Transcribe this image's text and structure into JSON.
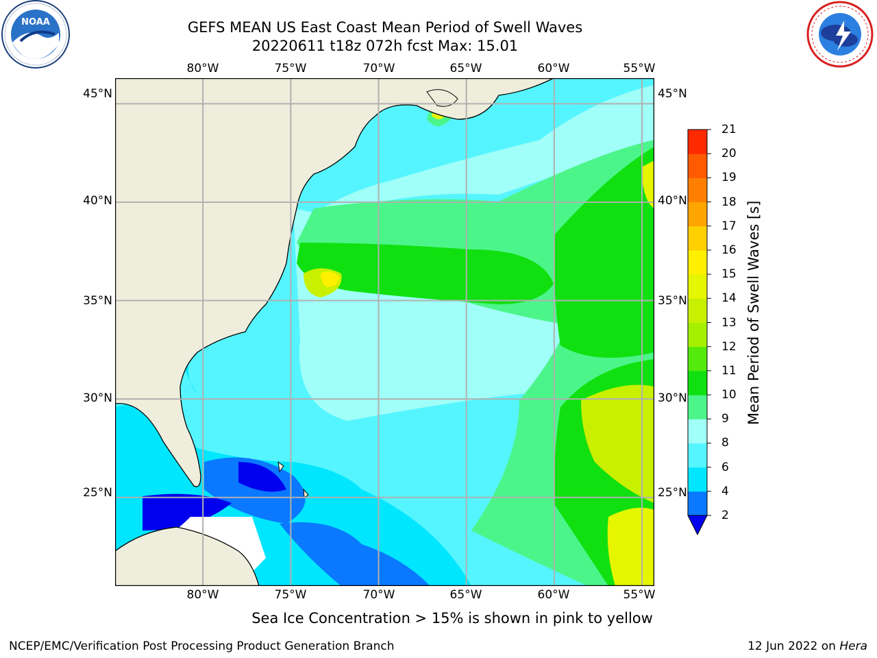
{
  "title": {
    "line1": "GEFS MEAN US East Coast Mean Period of Swell Waves",
    "line2": "20220611 t18z 072h fcst   Max: 15.01"
  },
  "logos": {
    "noaa_text": "NOAA",
    "noaa_ring": "NATIONAL OCEANIC AND ATMOSPHERIC ADMINISTRATION · U.S. DEPARTMENT OF COMMERCE",
    "nws_ring": "NATIONAL WEATHER SERVICE"
  },
  "map": {
    "lon_labels": [
      "80°W",
      "75°W",
      "70°W",
      "65°W",
      "60°W",
      "55°W"
    ],
    "lat_labels": [
      "45°N",
      "40°N",
      "35°N",
      "30°N",
      "25°N"
    ],
    "lon_values": [
      -80,
      -75,
      -70,
      -65,
      -60,
      -55
    ],
    "lat_values": [
      45,
      40,
      35,
      30,
      25
    ],
    "extent": {
      "lon_min": -85,
      "lon_max": -54.3,
      "lat_min": 20.5,
      "lat_max": 46.3
    },
    "land_color": "#efeedd",
    "grid_color": "#b0b0b0"
  },
  "colorbar": {
    "title": "Mean Period of Swell Waves [s]",
    "levels": [
      2,
      4,
      6,
      8,
      9,
      10,
      11,
      12,
      13,
      14,
      15,
      16,
      17,
      18,
      19,
      20,
      21
    ],
    "labels": [
      "2",
      "4",
      "6",
      "8",
      "9",
      "10",
      "11",
      "12",
      "13",
      "14",
      "15",
      "16",
      "17",
      "18",
      "19",
      "20",
      "21"
    ],
    "colors": [
      "#0a78ff",
      "#00e6ff",
      "#55f5ff",
      "#a0fff8",
      "#4cf58a",
      "#10e010",
      "#54ea0c",
      "#a5f000",
      "#c8f000",
      "#e6f500",
      "#fff000",
      "#ffd000",
      "#ffa500",
      "#ff8000",
      "#ff5a00",
      "#ff2a00"
    ],
    "extend_below_color": "#0000ee"
  },
  "subtitle": "Sea Ice Concentration > 15% is shown in pink to yellow",
  "footer": {
    "left": "NCEP/EMC/Verification Post Processing Product Generation Branch",
    "date": "12 Jun 2022 on",
    "host": "Hera"
  }
}
